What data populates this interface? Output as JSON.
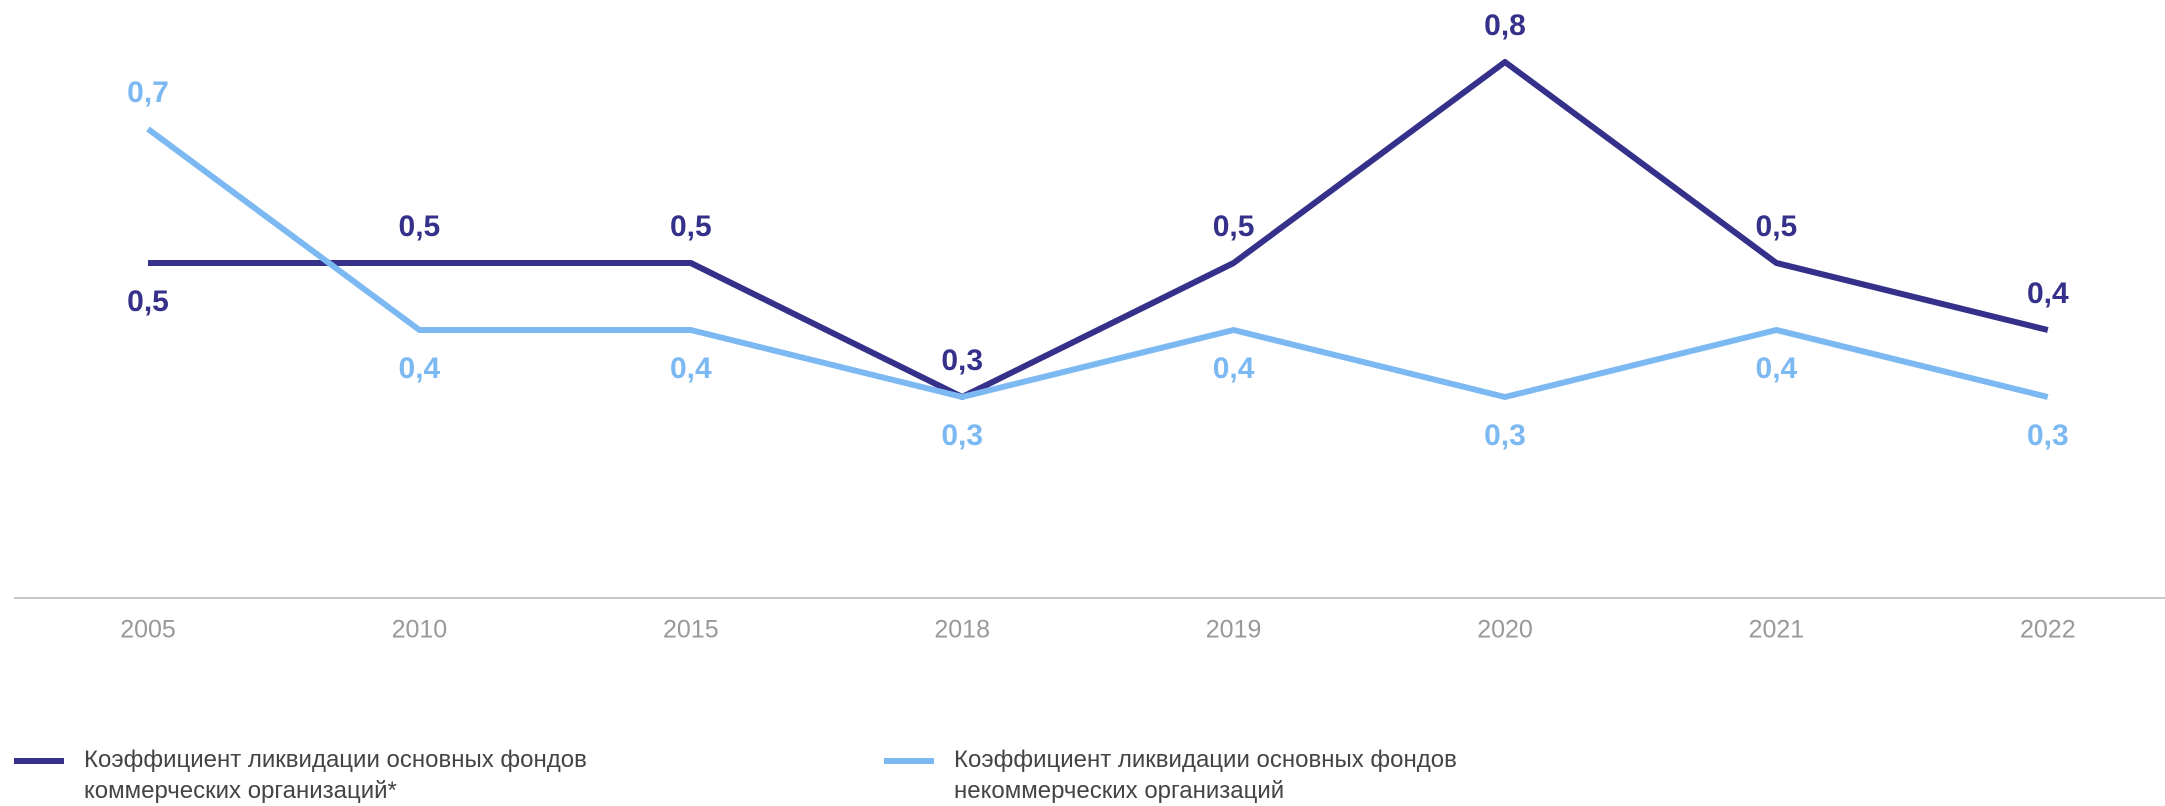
{
  "chart_data": {
    "type": "line",
    "categories": [
      "2005",
      "2010",
      "2015",
      "2018",
      "2019",
      "2020",
      "2021",
      "2022"
    ],
    "series": [
      {
        "name": "Коэффициент ликвидации основных фондов коммерческих организаций*",
        "color": "#35318a",
        "values": [
          0.5,
          0.5,
          0.5,
          0.3,
          0.5,
          0.8,
          0.5,
          0.4
        ],
        "value_labels": [
          "0,5",
          "0,5",
          "0,5",
          "0,3",
          "0,5",
          "0,8",
          "0,5",
          "0,4"
        ]
      },
      {
        "name": "Коэффициент ликвидации основных фондов некоммерческих организаций",
        "color": "#7cb9f2",
        "values": [
          0.7,
          0.4,
          0.4,
          0.3,
          0.4,
          0.3,
          0.4,
          0.3
        ],
        "value_labels": [
          "0,7",
          "0,4",
          "0,4",
          "0,3",
          "0,4",
          "0,3",
          "0,4",
          "0,3"
        ]
      }
    ],
    "ylim": [
      0,
      0.9
    ]
  }
}
